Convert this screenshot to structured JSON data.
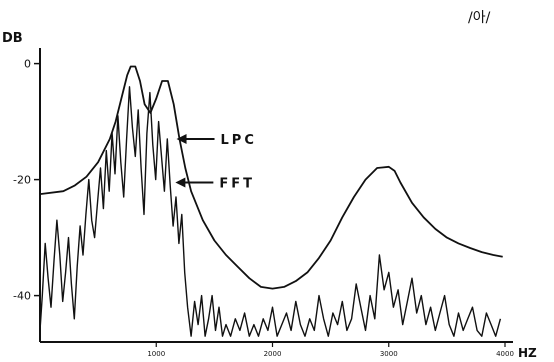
{
  "chart_data": {
    "type": "line",
    "title": "/아/",
    "xlabel": "HZ",
    "ylabel": "DB",
    "xlim": [
      0,
      4000
    ],
    "ylim": [
      -48,
      2
    ],
    "grid": false,
    "y_ticks": [
      {
        "value": 0,
        "label": "0"
      },
      {
        "value": -20,
        "label": "-20"
      },
      {
        "value": -40,
        "label": "-40"
      }
    ],
    "x_ticks": [
      {
        "value": 1000,
        "label": "1000"
      },
      {
        "value": 2000,
        "label": "2000"
      },
      {
        "value": 3000,
        "label": "3000"
      },
      {
        "value": 4000,
        "label": "4000"
      }
    ],
    "annotations": [
      {
        "text": "LPC",
        "series": "LPC",
        "target": {
          "x": 1140,
          "y": -13
        }
      },
      {
        "text": "FFT",
        "series": "FFT",
        "target": {
          "x": 1130,
          "y": -20.5
        }
      }
    ],
    "series": [
      {
        "name": "LPC",
        "color": "#111111",
        "x": [
          0,
          200,
          300,
          400,
          500,
          600,
          650,
          700,
          750,
          780,
          820,
          860,
          900,
          950,
          1000,
          1050,
          1100,
          1150,
          1200,
          1250,
          1300,
          1400,
          1500,
          1600,
          1700,
          1800,
          1900,
          2000,
          2100,
          2200,
          2300,
          2400,
          2500,
          2600,
          2700,
          2800,
          2900,
          3000,
          3050,
          3100,
          3200,
          3300,
          3400,
          3500,
          3600,
          3700,
          3800,
          3900,
          3980
        ],
        "y": [
          -22.5,
          -22,
          -21,
          -19.5,
          -17,
          -13,
          -10,
          -6,
          -2,
          -0.5,
          -0.5,
          -3,
          -7,
          -8.5,
          -6,
          -3,
          -3,
          -7,
          -13,
          -18,
          -22,
          -27,
          -30.5,
          -33,
          -35,
          -37,
          -38.5,
          -38.8,
          -38.5,
          -37.5,
          -36,
          -33.5,
          -30.5,
          -26.5,
          -23,
          -20,
          -18,
          -17.8,
          -18.5,
          -20.5,
          -24,
          -26.5,
          -28.5,
          -30,
          -31,
          -31.8,
          -32.5,
          -33,
          -33.3
        ]
      },
      {
        "name": "FFT",
        "color": "#111111",
        "x": [
          0,
          20,
          45,
          70,
          95,
          120,
          145,
          170,
          195,
          220,
          245,
          270,
          295,
          320,
          345,
          370,
          395,
          420,
          445,
          470,
          495,
          520,
          545,
          570,
          595,
          620,
          645,
          670,
          695,
          720,
          745,
          770,
          795,
          820,
          845,
          870,
          895,
          920,
          945,
          970,
          995,
          1020,
          1045,
          1070,
          1095,
          1120,
          1145,
          1170,
          1195,
          1220,
          1245,
          1270,
          1300,
          1330,
          1360,
          1390,
          1420,
          1450,
          1480,
          1510,
          1540,
          1570,
          1600,
          1640,
          1680,
          1720,
          1760,
          1800,
          1840,
          1880,
          1920,
          1960,
          2000,
          2040,
          2080,
          2120,
          2160,
          2200,
          2240,
          2280,
          2320,
          2360,
          2400,
          2440,
          2480,
          2520,
          2560,
          2600,
          2640,
          2680,
          2720,
          2760,
          2800,
          2840,
          2880,
          2920,
          2960,
          3000,
          3040,
          3080,
          3120,
          3160,
          3200,
          3240,
          3280,
          3320,
          3360,
          3400,
          3440,
          3480,
          3520,
          3560,
          3600,
          3640,
          3680,
          3720,
          3760,
          3800,
          3840,
          3880,
          3920,
          3960
        ],
        "y": [
          -46,
          -40,
          -31,
          -37,
          -42,
          -34,
          -27,
          -33,
          -41,
          -36,
          -30,
          -38,
          -44,
          -35,
          -28,
          -33,
          -26,
          -20,
          -27,
          -30,
          -24,
          -18,
          -25,
          -15,
          -22,
          -12,
          -19,
          -9,
          -17,
          -23,
          -13,
          -4,
          -11,
          -16,
          -8,
          -18,
          -26,
          -12,
          -5,
          -14,
          -20,
          -10,
          -16,
          -22,
          -13,
          -21,
          -28,
          -23,
          -31,
          -26,
          -36,
          -42,
          -47,
          -41,
          -45,
          -40,
          -47,
          -44,
          -40,
          -46,
          -42,
          -47,
          -45,
          -47,
          -44,
          -46,
          -43,
          -47,
          -45,
          -47,
          -44,
          -46,
          -42,
          -47,
          -45,
          -43,
          -46,
          -41,
          -45,
          -47,
          -44,
          -46,
          -40,
          -44,
          -47,
          -43,
          -45,
          -41,
          -46,
          -44,
          -38,
          -42,
          -46,
          -40,
          -44,
          -33,
          -39,
          -36,
          -42,
          -39,
          -45,
          -41,
          -37,
          -43,
          -40,
          -45,
          -42,
          -46,
          -43,
          -40,
          -45,
          -47,
          -43,
          -46,
          -44,
          -42,
          -46,
          -47,
          -43,
          -45,
          -47,
          -44
        ]
      }
    ]
  }
}
